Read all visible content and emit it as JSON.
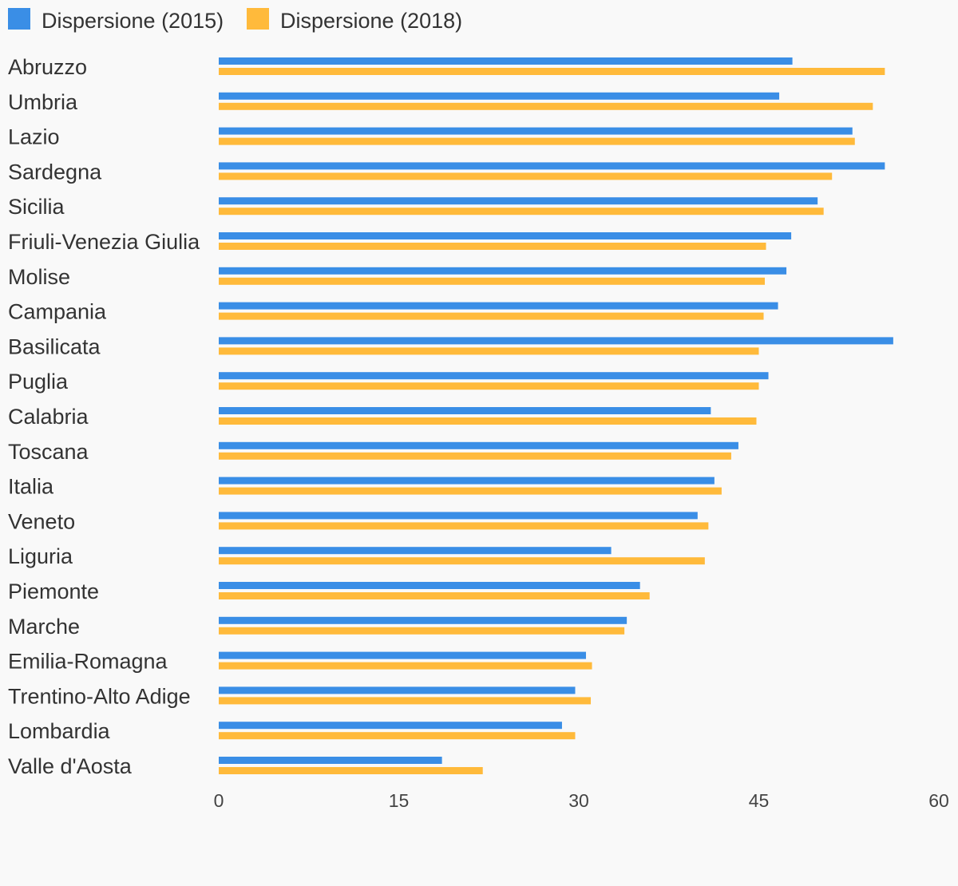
{
  "chart_data": {
    "type": "bar",
    "orientation": "horizontal",
    "legend_position": "top-left",
    "grid": false,
    "categories": [
      "Abruzzo",
      "Umbria",
      "Lazio",
      "Sardegna",
      "Sicilia",
      "Friuli-Venezia Giulia",
      "Molise",
      "Campania",
      "Basilicata",
      "Puglia",
      "Calabria",
      "Toscana",
      "Italia",
      "Veneto",
      "Liguria",
      "Piemonte",
      "Marche",
      "Emilia-Romagna",
      "Trentino-Alto Adige",
      "Lombardia",
      "Valle d'Aosta"
    ],
    "series": [
      {
        "name": "Dispersione (2015)",
        "color": "#3a8ee6",
        "values": [
          47.8,
          46.7,
          52.8,
          55.5,
          49.9,
          47.7,
          47.3,
          46.6,
          56.2,
          45.8,
          41.0,
          43.3,
          41.3,
          39.9,
          32.7,
          35.1,
          34.0,
          30.6,
          29.7,
          28.6,
          18.6
        ]
      },
      {
        "name": "Dispersione (2018)",
        "color": "#ffba3b",
        "values": [
          55.5,
          54.5,
          53.0,
          51.1,
          50.4,
          45.6,
          45.5,
          45.4,
          45.0,
          45.0,
          44.8,
          42.7,
          41.9,
          40.8,
          40.5,
          35.9,
          33.8,
          31.1,
          31.0,
          29.7,
          22.0
        ]
      }
    ],
    "xlim": [
      0,
      60
    ],
    "xticks": [
      "0",
      "15",
      "30",
      "45",
      "60"
    ]
  }
}
